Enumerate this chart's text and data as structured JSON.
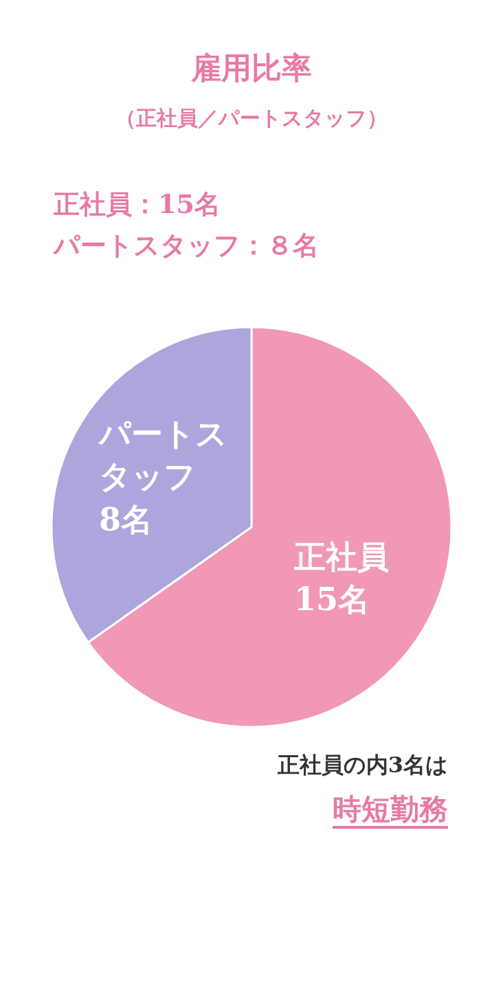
{
  "chart_data": {
    "type": "pie",
    "title": "雇用比率",
    "subtitle": "（正社員／パートスタッフ）",
    "categories": [
      "正社員",
      "パートスタッフ"
    ],
    "values": [
      15,
      8
    ],
    "value_labels": [
      "15名",
      "8名"
    ],
    "colors": [
      "#f098b6",
      "#aca6dc"
    ],
    "legend": false,
    "annotations": [
      "正社員：15名",
      "パートスタッフ：８名",
      "正社員の内3名は",
      "時短勤務"
    ]
  }
}
